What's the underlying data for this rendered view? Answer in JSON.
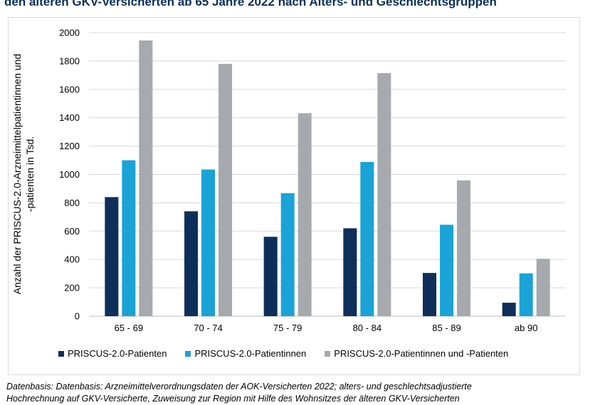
{
  "title": "den älteren GKV-Versicherten ab 65 Jahre 2022 nach Alters- und Geschlechtsgruppen",
  "source_line1": "Datenbasis: Datenbasis: Arzneimittelverordnungsdaten der AOK-Versicherten 2022; alters- und geschlechtsadjustierte",
  "source_line2": "Hochrechnung auf GKV-Versicherte, Zuweisung zur Region mit Hilfe des Wohnsitzes der älteren GKV-Versicherten",
  "chart_data": {
    "type": "bar",
    "title": "den älteren GKV-Versicherten ab 65 Jahre 2022 nach Alters- und Geschlechtsgruppen",
    "xlabel": "",
    "ylabel_lines": [
      "Anzahl der PRISCUS-2.0-Arzneimittelpatientinnen und",
      "-patienten in Tsd."
    ],
    "categories": [
      "65 - 69",
      "70 - 74",
      "75 - 79",
      "80 - 84",
      "85 - 89",
      "ab 90"
    ],
    "ylim": [
      0,
      2000
    ],
    "yticks": [
      "0",
      "200",
      "400",
      "600",
      "800",
      "1000",
      "1200",
      "1400",
      "1600",
      "1800",
      "2000"
    ],
    "grid": true,
    "legend_position": "bottom",
    "series": [
      {
        "name": "PRISCUS-2.0-Patienten",
        "color": "#0e2f5a",
        "values": [
          840,
          740,
          560,
          620,
          305,
          95
        ]
      },
      {
        "name": "PRISCUS-2.0-Patientinnen",
        "color": "#1aa3d6",
        "values": [
          1100,
          1035,
          868,
          1088,
          645,
          302
        ]
      },
      {
        "name": "PRISCUS-2.0-Patientinnen und -Patienten",
        "color": "#a6a9ad",
        "values": [
          1945,
          1780,
          1432,
          1715,
          958,
          405
        ]
      }
    ]
  }
}
